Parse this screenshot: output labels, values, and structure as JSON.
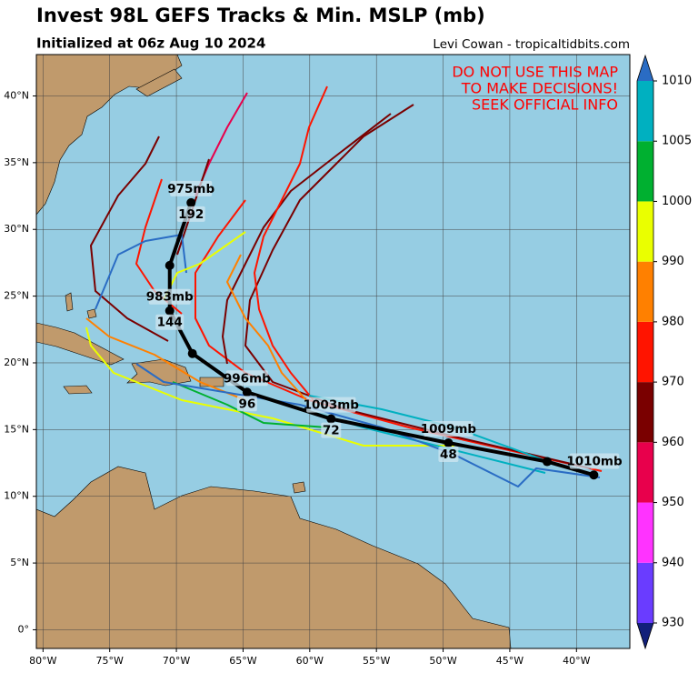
{
  "title": "Invest 98L GEFS Tracks & Min. MSLP (mb)",
  "subtitle": "Initialized at 06z Aug 10 2024",
  "credit": "Levi Cowan - tropicaltidbits.com",
  "warning": [
    "DO NOT USE THIS MAP",
    "TO MAKE DECISIONS!",
    "SEEK OFFICIAL INFO"
  ],
  "map": {
    "lonlim": [
      -80.5,
      -36
    ],
    "latlim": [
      -1.4,
      43.1
    ],
    "lonticks": [
      {
        "value": -80,
        "label": "80°W"
      },
      {
        "value": -75,
        "label": "75°W"
      },
      {
        "value": -70,
        "label": "70°W"
      },
      {
        "value": -65,
        "label": "65°W"
      },
      {
        "value": -60,
        "label": "60°W"
      },
      {
        "value": -55,
        "label": "55°W"
      },
      {
        "value": -50,
        "label": "50°W"
      },
      {
        "value": -45,
        "label": "45°W"
      },
      {
        "value": -40,
        "label": "40°W"
      }
    ],
    "latticks": [
      {
        "value": 0,
        "label": "0°"
      },
      {
        "value": 5,
        "label": "5°N"
      },
      {
        "value": 10,
        "label": "10°N"
      },
      {
        "value": 15,
        "label": "15°N"
      },
      {
        "value": 20,
        "label": "20°N"
      },
      {
        "value": 25,
        "label": "25°N"
      },
      {
        "value": 30,
        "label": "30°N"
      },
      {
        "value": 35,
        "label": "35°N"
      },
      {
        "value": 40,
        "label": "40°N"
      }
    ],
    "mean_track": {
      "color": "#000000",
      "lon": [
        -38.7,
        -42.2,
        -49.6,
        -58.4,
        -64.7,
        -68.8,
        -70.5,
        -70.5,
        -68.9
      ],
      "lat": [
        11.6,
        12.6,
        14.0,
        15.8,
        17.8,
        20.7,
        23.9,
        27.3,
        32.0
      ]
    },
    "track_labels": [
      {
        "point": 1,
        "pressure": "1010mb"
      },
      {
        "point": 2,
        "pressure": "1009mb",
        "hour": 48
      },
      {
        "point": 3,
        "pressure": "1003mb",
        "hour": 72
      },
      {
        "point": 4,
        "pressure": "996mb",
        "hour": 96
      },
      {
        "point": 6,
        "pressure": "983mb",
        "hour": 144
      },
      {
        "point": 8,
        "pressure": "975mb",
        "hour": 192
      }
    ]
  },
  "colorbar": {
    "levels": [
      930,
      940,
      950,
      960,
      970,
      980,
      990,
      1000,
      1005,
      1010
    ],
    "colors": [
      "#6a3cff",
      "#ff33ff",
      "#e8004c",
      "#7a0000",
      "#ff1400",
      "#ff8000",
      "#eaff00",
      "#00b030",
      "#00b0c0"
    ],
    "under": "#12207a",
    "over": "#2a6cc4"
  }
}
